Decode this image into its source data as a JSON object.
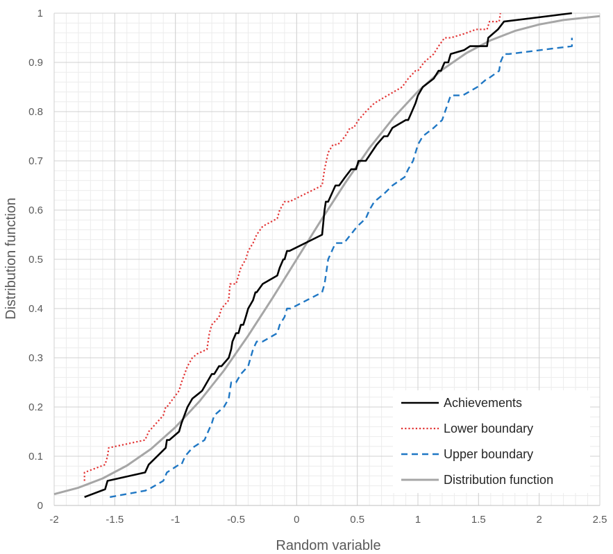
{
  "chart_data": {
    "type": "line",
    "title": "",
    "xlabel": "Random variable",
    "ylabel": "Distribution function",
    "xlim": [
      -2,
      2.5
    ],
    "ylim": [
      0,
      1
    ],
    "x_ticks": [
      "-2",
      "-1.5",
      "-1",
      "-0.5",
      "0",
      "0.5",
      "1",
      "1.5",
      "2",
      "2.5"
    ],
    "y_ticks": [
      "0",
      "0.1",
      "0.2",
      "0.3",
      "0.4",
      "0.5",
      "0.6",
      "0.7",
      "0.8",
      "0.9",
      "1"
    ],
    "grid": true,
    "legend_position": "bottom-right",
    "series": [
      {
        "name": "Achievements",
        "color": "#000000",
        "style": "solid",
        "x": [
          -1.75,
          -1.58,
          -1.56,
          -1.25,
          -1.22,
          -1.08,
          -1.07,
          -1.05,
          -0.97,
          -0.95,
          -0.9,
          -0.86,
          -0.82,
          -0.78,
          -0.74,
          -0.7,
          -0.68,
          -0.64,
          -0.62,
          -0.56,
          -0.54,
          -0.53,
          -0.5,
          -0.48,
          -0.46,
          -0.44,
          -0.42,
          -0.4,
          -0.36,
          -0.34,
          -0.33,
          -0.28,
          -0.16,
          -0.14,
          -0.11,
          -0.1,
          -0.08,
          -0.06,
          0.21,
          0.23,
          0.24,
          0.26,
          0.32,
          0.35,
          0.4,
          0.45,
          0.46,
          0.49,
          0.51,
          0.57,
          0.66,
          0.72,
          0.75,
          0.79,
          0.9,
          0.92,
          0.95,
          0.98,
          1.0,
          1.04,
          1.13,
          1.17,
          1.19,
          1.22,
          1.25,
          1.27,
          1.38,
          1.43,
          1.57,
          1.58,
          1.66,
          1.71,
          2.27
        ],
        "y": [
          0.017,
          0.033,
          0.05,
          0.067,
          0.083,
          0.117,
          0.133,
          0.133,
          0.15,
          0.167,
          0.2,
          0.217,
          0.225,
          0.233,
          0.25,
          0.267,
          0.267,
          0.283,
          0.283,
          0.3,
          0.317,
          0.333,
          0.35,
          0.35,
          0.367,
          0.367,
          0.383,
          0.4,
          0.417,
          0.433,
          0.433,
          0.45,
          0.467,
          0.483,
          0.5,
          0.5,
          0.517,
          0.517,
          0.55,
          0.6,
          0.617,
          0.617,
          0.65,
          0.65,
          0.667,
          0.683,
          0.683,
          0.683,
          0.7,
          0.7,
          0.733,
          0.75,
          0.75,
          0.767,
          0.783,
          0.783,
          0.8,
          0.817,
          0.833,
          0.85,
          0.867,
          0.883,
          0.883,
          0.9,
          0.9,
          0.917,
          0.925,
          0.933,
          0.933,
          0.95,
          0.967,
          0.983,
          1.0
        ]
      },
      {
        "name": "Lower boundary",
        "color": "#e23333",
        "style": "dotted",
        "x": [
          -1.75,
          -1.75,
          -1.58,
          -1.56,
          -1.55,
          -1.25,
          -1.22,
          -1.1,
          -1.08,
          -1.07,
          -0.97,
          -0.95,
          -0.9,
          -0.86,
          -0.82,
          -0.74,
          -0.72,
          -0.7,
          -0.64,
          -0.62,
          -0.56,
          -0.55,
          -0.5,
          -0.48,
          -0.46,
          -0.42,
          -0.4,
          -0.36,
          -0.33,
          -0.28,
          -0.16,
          -0.14,
          -0.1,
          -0.08,
          -0.06,
          0.21,
          0.23,
          0.26,
          0.3,
          0.34,
          0.4,
          0.44,
          0.47,
          0.51,
          0.57,
          0.64,
          0.75,
          0.87,
          0.92,
          0.98,
          1.0,
          1.05,
          1.13,
          1.17,
          1.22,
          1.27,
          1.38,
          1.48,
          1.57,
          1.59,
          1.67,
          1.68
        ],
        "y": [
          0.05,
          0.067,
          0.083,
          0.1,
          0.117,
          0.133,
          0.15,
          0.183,
          0.2,
          0.2,
          0.233,
          0.25,
          0.283,
          0.3,
          0.308,
          0.317,
          0.35,
          0.367,
          0.383,
          0.4,
          0.417,
          0.45,
          0.45,
          0.467,
          0.483,
          0.5,
          0.517,
          0.533,
          0.55,
          0.567,
          0.583,
          0.6,
          0.617,
          0.617,
          0.617,
          0.65,
          0.683,
          0.717,
          0.733,
          0.733,
          0.75,
          0.767,
          0.767,
          0.783,
          0.8,
          0.817,
          0.833,
          0.85,
          0.867,
          0.883,
          0.883,
          0.9,
          0.917,
          0.933,
          0.95,
          0.95,
          0.958,
          0.967,
          0.967,
          0.983,
          0.983,
          1.0
        ]
      },
      {
        "name": "Upper boundary",
        "color": "#1f77c4",
        "style": "dashed",
        "x": [
          -1.54,
          -1.25,
          -1.22,
          -1.1,
          -1.07,
          -0.97,
          -0.95,
          -0.92,
          -0.86,
          -0.76,
          -0.73,
          -0.7,
          -0.68,
          -0.6,
          -0.56,
          -0.54,
          -0.5,
          -0.46,
          -0.4,
          -0.36,
          -0.33,
          -0.28,
          -0.16,
          -0.14,
          -0.1,
          -0.08,
          -0.05,
          0.21,
          0.23,
          0.25,
          0.26,
          0.32,
          0.39,
          0.5,
          0.57,
          0.6,
          0.64,
          0.72,
          0.79,
          0.89,
          0.92,
          0.96,
          1.0,
          1.04,
          1.13,
          1.2,
          1.27,
          1.37,
          1.49,
          1.57,
          1.58,
          1.67,
          1.68,
          1.71,
          1.75,
          2.27,
          2.27
        ],
        "y": [
          0.017,
          0.03,
          0.033,
          0.05,
          0.067,
          0.083,
          0.083,
          0.1,
          0.117,
          0.133,
          0.15,
          0.167,
          0.183,
          0.2,
          0.217,
          0.25,
          0.25,
          0.267,
          0.283,
          0.317,
          0.333,
          0.333,
          0.35,
          0.367,
          0.383,
          0.4,
          0.4,
          0.433,
          0.45,
          0.483,
          0.5,
          0.533,
          0.533,
          0.567,
          0.583,
          0.6,
          0.617,
          0.633,
          0.65,
          0.667,
          0.683,
          0.7,
          0.733,
          0.75,
          0.767,
          0.783,
          0.833,
          0.833,
          0.85,
          0.867,
          0.867,
          0.883,
          0.9,
          0.917,
          0.917,
          0.933,
          0.95
        ]
      },
      {
        "name": "Distribution function",
        "color": "#a6a6a6",
        "style": "solid",
        "x": [
          -2.0,
          -1.8,
          -1.6,
          -1.4,
          -1.2,
          -1.0,
          -0.8,
          -0.6,
          -0.4,
          -0.2,
          0.0,
          0.2,
          0.4,
          0.6,
          0.8,
          1.0,
          1.2,
          1.4,
          1.6,
          1.8,
          2.0,
          2.2,
          2.5
        ],
        "y": [
          0.023,
          0.036,
          0.055,
          0.081,
          0.115,
          0.159,
          0.212,
          0.274,
          0.345,
          0.421,
          0.5,
          0.579,
          0.655,
          0.726,
          0.788,
          0.841,
          0.885,
          0.919,
          0.945,
          0.964,
          0.977,
          0.986,
          0.994
        ]
      }
    ]
  }
}
